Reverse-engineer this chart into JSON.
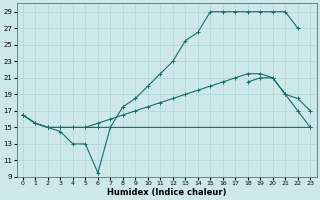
{
  "xlabel": "Humidex (Indice chaleur)",
  "bg_color": "#cce8e8",
  "grid_color": "#b0d4d4",
  "line_color": "#1a6b6b",
  "ylim": [
    9,
    30
  ],
  "xlim": [
    -0.5,
    23.5
  ],
  "yticks": [
    9,
    11,
    13,
    15,
    17,
    19,
    21,
    23,
    25,
    27,
    29
  ],
  "xticks": [
    0,
    1,
    2,
    3,
    4,
    5,
    6,
    7,
    8,
    9,
    10,
    11,
    12,
    13,
    14,
    15,
    16,
    17,
    18,
    19,
    20,
    21,
    22,
    23
  ],
  "line1_x": [
    0,
    1,
    2,
    3,
    4,
    5,
    6,
    7,
    8,
    9,
    10,
    11,
    12,
    13,
    14,
    15,
    16,
    17,
    18,
    19,
    20,
    21,
    22
  ],
  "line1_y": [
    16.5,
    15.5,
    15.0,
    14.5,
    13.0,
    13.0,
    9.5,
    15.0,
    17.5,
    18.5,
    20.0,
    21.5,
    23.0,
    25.5,
    26.5,
    29.0,
    29.0,
    29.0,
    29.0,
    29.0,
    29.0,
    29.0,
    27.0
  ],
  "line2_x": [
    0,
    1,
    2,
    3,
    4,
    5,
    6,
    23
  ],
  "line2_y": [
    16.5,
    15.5,
    15.0,
    15.0,
    15.0,
    15.0,
    15.0,
    15.0
  ],
  "line3_x": [
    0,
    1,
    2,
    3,
    4,
    5,
    6,
    7,
    8,
    9,
    10,
    11,
    12,
    13,
    14,
    15,
    16,
    17,
    18,
    19,
    20,
    21,
    22,
    23
  ],
  "line3_y": [
    16.5,
    15.5,
    15.0,
    15.0,
    15.0,
    15.0,
    15.5,
    16.0,
    16.5,
    17.0,
    17.5,
    18.0,
    18.5,
    19.0,
    19.5,
    20.0,
    20.5,
    21.0,
    21.5,
    21.5,
    21.0,
    19.0,
    18.5,
    17.0
  ],
  "line4_x": [
    18,
    19,
    20,
    21,
    22,
    23
  ],
  "line4_y": [
    20.5,
    21.0,
    21.0,
    19.0,
    17.0,
    15.0
  ]
}
